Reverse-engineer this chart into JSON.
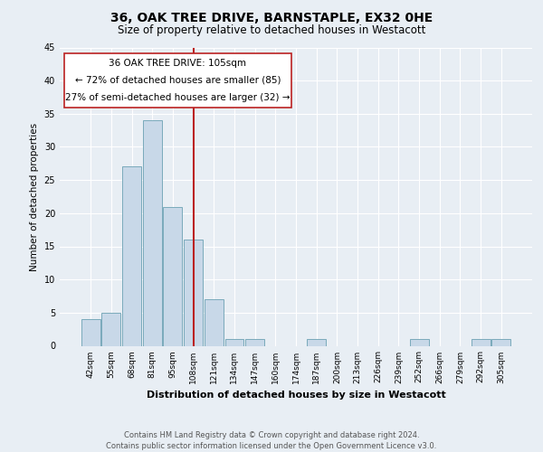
{
  "title": "36, OAK TREE DRIVE, BARNSTAPLE, EX32 0HE",
  "subtitle": "Size of property relative to detached houses in Westacott",
  "xlabel": "Distribution of detached houses by size in Westacott",
  "ylabel": "Number of detached properties",
  "categories": [
    "42sqm",
    "55sqm",
    "68sqm",
    "81sqm",
    "95sqm",
    "108sqm",
    "121sqm",
    "134sqm",
    "147sqm",
    "160sqm",
    "174sqm",
    "187sqm",
    "200sqm",
    "213sqm",
    "226sqm",
    "239sqm",
    "252sqm",
    "266sqm",
    "279sqm",
    "292sqm",
    "305sqm"
  ],
  "values": [
    4,
    5,
    27,
    34,
    21,
    16,
    7,
    1,
    1,
    0,
    0,
    1,
    0,
    0,
    0,
    0,
    1,
    0,
    0,
    1,
    1
  ],
  "bar_color": "#c8d8e8",
  "bar_edge_color": "#7aaabb",
  "vline_x_index": 5,
  "vline_color": "#bb2222",
  "annotation_line1": "36 OAK TREE DRIVE: 105sqm",
  "annotation_line2": "← 72% of detached houses are smaller (85)",
  "annotation_line3": "27% of semi-detached houses are larger (32) →",
  "annotation_box_color": "#ffffff",
  "annotation_box_edge_color": "#bb2222",
  "ylim": [
    0,
    45
  ],
  "yticks": [
    0,
    5,
    10,
    15,
    20,
    25,
    30,
    35,
    40,
    45
  ],
  "footer_line1": "Contains HM Land Registry data © Crown copyright and database right 2024.",
  "footer_line2": "Contains public sector information licensed under the Open Government Licence v3.0.",
  "bg_color": "#e8eef4",
  "plot_bg_color": "#e8eef4",
  "title_fontsize": 10,
  "subtitle_fontsize": 8.5,
  "xlabel_fontsize": 8,
  "ylabel_fontsize": 7.5,
  "tick_fontsize": 6.5,
  "annot_fontsize": 7.5,
  "footer_fontsize": 6
}
